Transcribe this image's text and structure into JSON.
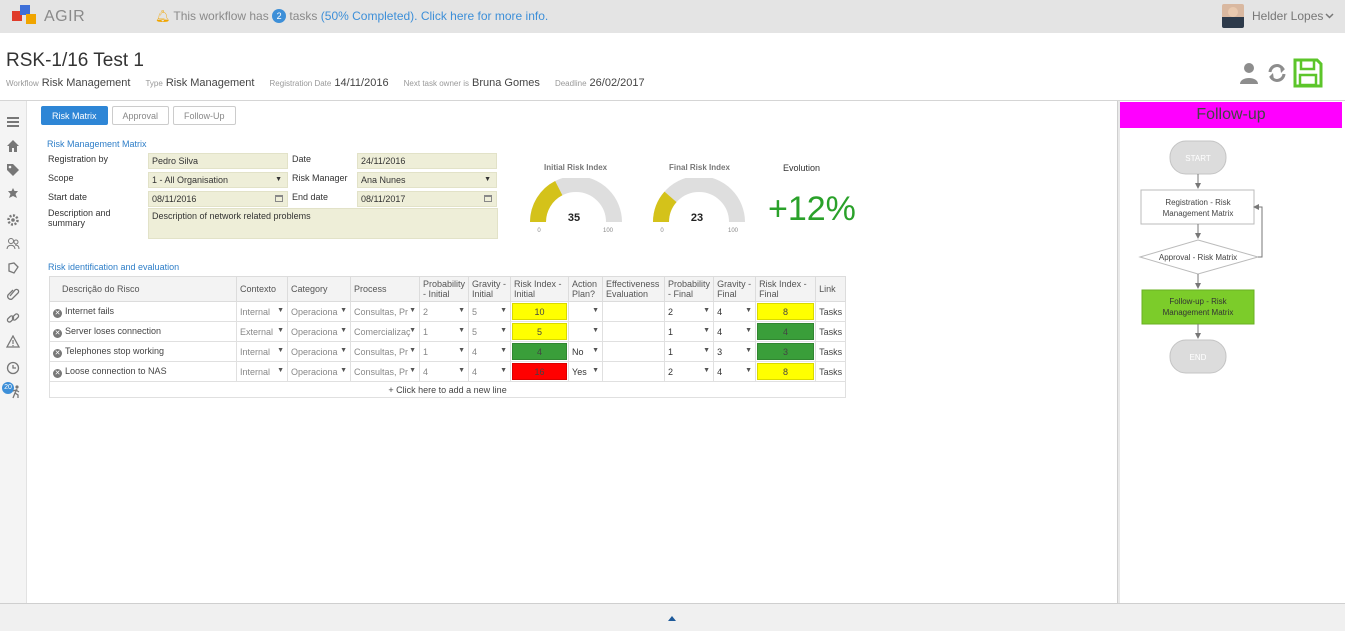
{
  "topbar": {
    "app_name": "AGIR",
    "notice_prefix": "This workflow has",
    "task_count": "2",
    "notice_suffix": "tasks",
    "notice_completion": "(50% Completed).",
    "notice_link": "Click here for more info.",
    "user_name": "Helder Lopes",
    "icons": {
      "bell": "bell-icon",
      "chevron": "chevron-down-icon"
    }
  },
  "header": {
    "title": "RSK-1/16 Test 1",
    "meta": {
      "workflow_key": "Workflow",
      "workflow_val": "Risk Management",
      "type_key": "Type",
      "type_val": "Risk Management",
      "regdate_key": "Registration Date",
      "regdate_val": "14/11/2016",
      "next_key": "Next task owner is",
      "next_val": "Bruna Gomes",
      "deadline_key": "Deadline",
      "deadline_val": "26/02/2017"
    },
    "icons": [
      "user-icon",
      "refresh-icon",
      "save-icon"
    ]
  },
  "leftnav": {
    "icons": [
      "menu-icon",
      "home-icon",
      "tags-icon",
      "tag-icon",
      "settings-icon",
      "users-icon",
      "shield-icon",
      "paperclip-icon",
      "link-icon",
      "warning-icon",
      "clock-icon",
      "person-walk-icon"
    ],
    "badge": "20"
  },
  "tabs": [
    {
      "label": "Risk Matrix",
      "active": true
    },
    {
      "label": "Approval",
      "active": false
    },
    {
      "label": "Follow-Up",
      "active": false
    }
  ],
  "form": {
    "section_title": "Risk Management Matrix",
    "registration_by_label": "Registration by",
    "registration_by_value": "Pedro Silva",
    "scope_label": "Scope",
    "scope_value": "1 - All Organisation",
    "start_date_label": "Start date",
    "start_date_value": "08/11/2016",
    "description_label": "Description and summary",
    "description_value": "Description of network related problems",
    "date_label": "Date",
    "date_value": "24/11/2016",
    "risk_manager_label": "Risk Manager",
    "risk_manager_value": "Ana Nunes",
    "end_date_label": "End date",
    "end_date_value": "08/11/2017"
  },
  "gauges": [
    {
      "title": "Initial Risk Index",
      "value": 35,
      "min": 0,
      "max": 100,
      "color": "#d4c21a",
      "min_label": "0",
      "max_label": "100",
      "value_label": "35"
    },
    {
      "title": "Final Risk Index",
      "value": 23,
      "min": 0,
      "max": 100,
      "color": "#d4c21a",
      "min_label": "0",
      "max_label": "100",
      "value_label": "23"
    }
  ],
  "evolution": {
    "label": "Evolution",
    "value": "+12%",
    "color": "#2aa12a"
  },
  "risk_table": {
    "section_title": "Risk identification and evaluation",
    "columns": [
      "Descrição do Risco",
      "Contexto",
      "Category",
      "Process",
      "Probability - Initial",
      "Gravity - Initial",
      "Risk Index - Initial",
      "Action Plan?",
      "Effectiveness Evaluation",
      "Probability - Final",
      "Gravity - Final",
      "Risk Index - Final",
      "Link"
    ],
    "rows": [
      {
        "desc": "Internet fails",
        "contexto": "Internal",
        "category": "Operaciona",
        "process": "Consultas, Pr",
        "prob_i": "2",
        "grav_i": "5",
        "idx_i": "10",
        "idx_i_color": "#ffff00",
        "action": "",
        "eff": "",
        "prob_f": "2",
        "grav_f": "4",
        "idx_f": "8",
        "idx_f_color": "#ffff00",
        "link": "Tasks"
      },
      {
        "desc": "Server loses connection",
        "contexto": "External",
        "category": "Operaciona",
        "process": "Comercializaç",
        "prob_i": "1",
        "grav_i": "5",
        "idx_i": "5",
        "idx_i_color": "#ffff00",
        "action": "",
        "eff": "",
        "prob_f": "1",
        "grav_f": "4",
        "idx_f": "4",
        "idx_f_color": "#3a9e3a",
        "link": "Tasks"
      },
      {
        "desc": "Telephones stop working",
        "contexto": "Internal",
        "category": "Operaciona",
        "process": "Consultas, Pr",
        "prob_i": "1",
        "grav_i": "4",
        "idx_i": "4",
        "idx_i_color": "#3a9e3a",
        "action": "No",
        "eff": "",
        "prob_f": "1",
        "grav_f": "3",
        "idx_f": "3",
        "idx_f_color": "#3a9e3a",
        "link": "Tasks"
      },
      {
        "desc": "Loose connection to NAS",
        "contexto": "Internal",
        "category": "Operaciona",
        "process": "Consultas, Pr",
        "prob_i": "4",
        "grav_i": "4",
        "idx_i": "16",
        "idx_i_color": "#ff0000",
        "action": "Yes",
        "eff": "",
        "prob_f": "2",
        "grav_f": "4",
        "idx_f": "8",
        "idx_f_color": "#ffff00",
        "link": "Tasks"
      }
    ],
    "add_line": "+ Click here to add a new line"
  },
  "followup": {
    "title": "Follow-up",
    "nodes": {
      "start": "START",
      "registration_1": "Registration - Risk",
      "registration_2": "Management Matrix",
      "approval": "Approval - Risk Matrix",
      "followup_1": "Follow-up - Risk",
      "followup_2": "Management Matrix",
      "end": "END"
    }
  }
}
